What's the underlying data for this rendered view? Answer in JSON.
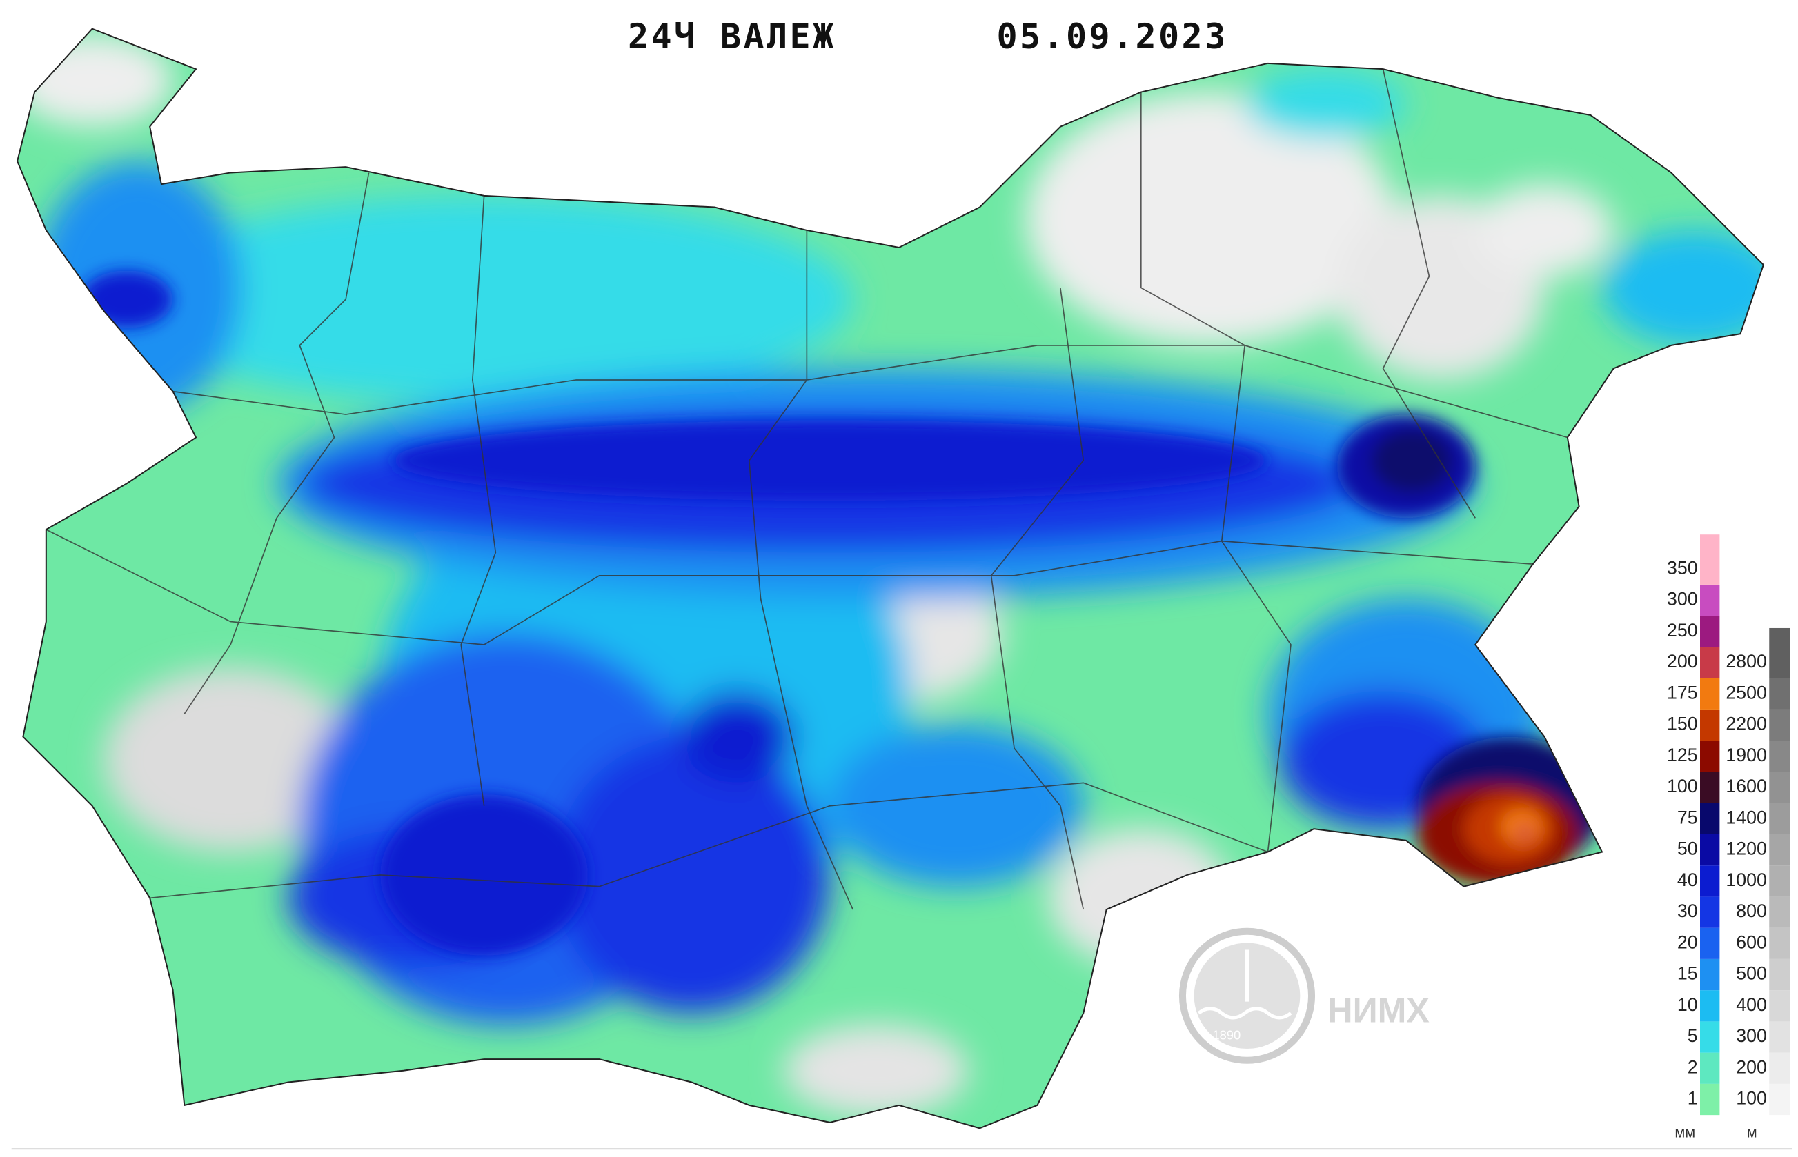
{
  "header": {
    "title": "24Ч ВАЛЕЖ",
    "date": "05.09.2023"
  },
  "legend": {
    "precipitation": {
      "unit": "мм",
      "levels": [
        {
          "value": 1,
          "color": "#7ef0a8"
        },
        {
          "value": 2,
          "color": "#5ee8c0"
        },
        {
          "value": 5,
          "color": "#36dce8"
        },
        {
          "value": 10,
          "color": "#1cbcf2"
        },
        {
          "value": 15,
          "color": "#1e90f2"
        },
        {
          "value": 20,
          "color": "#1a62f0"
        },
        {
          "value": 30,
          "color": "#1436e4"
        },
        {
          "value": 40,
          "color": "#0c1cd0"
        },
        {
          "value": 50,
          "color": "#0a0aa4"
        },
        {
          "value": 75,
          "color": "#08086c"
        },
        {
          "value": 100,
          "color": "#3a0c24"
        },
        {
          "value": 125,
          "color": "#8c0a00"
        },
        {
          "value": 150,
          "color": "#c43800"
        },
        {
          "value": 175,
          "color": "#f27a10"
        },
        {
          "value": 200,
          "color": "#c83a48"
        },
        {
          "value": 250,
          "color": "#9c1a80"
        },
        {
          "value": 300,
          "color": "#c84cc0"
        },
        {
          "value": 350,
          "color": "#ffb4c8"
        }
      ]
    },
    "elevation": {
      "unit": "м",
      "levels": [
        {
          "value": 100,
          "color": "#f4f4f4"
        },
        {
          "value": 200,
          "color": "#ececec"
        },
        {
          "value": 300,
          "color": "#e2e2e2"
        },
        {
          "value": 400,
          "color": "#d8d8d8"
        },
        {
          "value": 500,
          "color": "#cecece"
        },
        {
          "value": 600,
          "color": "#c4c4c4"
        },
        {
          "value": 800,
          "color": "#bababa"
        },
        {
          "value": 1000,
          "color": "#b0b0b0"
        },
        {
          "value": 1200,
          "color": "#a6a6a6"
        },
        {
          "value": 1400,
          "color": "#9c9c9c"
        },
        {
          "value": 1600,
          "color": "#929292"
        },
        {
          "value": 1900,
          "color": "#888888"
        },
        {
          "value": 2200,
          "color": "#7c7c7c"
        },
        {
          "value": 2500,
          "color": "#707070"
        },
        {
          "value": 2800,
          "color": "#606060"
        }
      ]
    }
  },
  "logo": {
    "name": "НИМХ",
    "year": "1890"
  }
}
